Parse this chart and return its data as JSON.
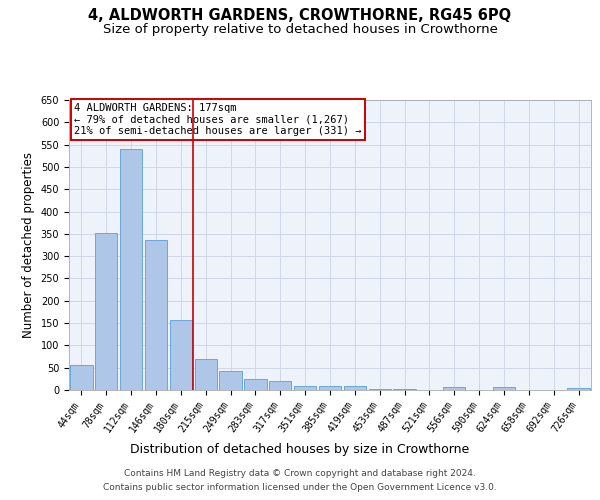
{
  "title": "4, ALDWORTH GARDENS, CROWTHORNE, RG45 6PQ",
  "subtitle": "Size of property relative to detached houses in Crowthorne",
  "xlabel": "Distribution of detached houses by size in Crowthorne",
  "ylabel": "Number of detached properties",
  "categories": [
    "44sqm",
    "78sqm",
    "112sqm",
    "146sqm",
    "180sqm",
    "215sqm",
    "249sqm",
    "283sqm",
    "317sqm",
    "351sqm",
    "385sqm",
    "419sqm",
    "453sqm",
    "487sqm",
    "521sqm",
    "556sqm",
    "590sqm",
    "624sqm",
    "658sqm",
    "692sqm",
    "726sqm"
  ],
  "values": [
    55,
    352,
    540,
    337,
    157,
    70,
    43,
    25,
    20,
    10,
    8,
    10,
    2,
    2,
    1,
    6,
    0,
    6,
    0,
    0,
    5
  ],
  "bar_color": "#aec6e8",
  "bar_edge_color": "#5a9fd4",
  "grid_color": "#d0d8e8",
  "background_color": "#eef2fa",
  "vline_color": "#cc0000",
  "annotation_text": "4 ALDWORTH GARDENS: 177sqm\n← 79% of detached houses are smaller (1,267)\n21% of semi-detached houses are larger (331) →",
  "annotation_box_color": "#cc0000",
  "ylim": [
    0,
    650
  ],
  "yticks": [
    0,
    50,
    100,
    150,
    200,
    250,
    300,
    350,
    400,
    450,
    500,
    550,
    600,
    650
  ],
  "footnote1": "Contains HM Land Registry data © Crown copyright and database right 2024.",
  "footnote2": "Contains public sector information licensed under the Open Government Licence v3.0.",
  "title_fontsize": 10.5,
  "subtitle_fontsize": 9.5,
  "xlabel_fontsize": 9,
  "ylabel_fontsize": 8.5,
  "tick_fontsize": 7,
  "annot_fontsize": 7.5,
  "footnote_fontsize": 6.5
}
